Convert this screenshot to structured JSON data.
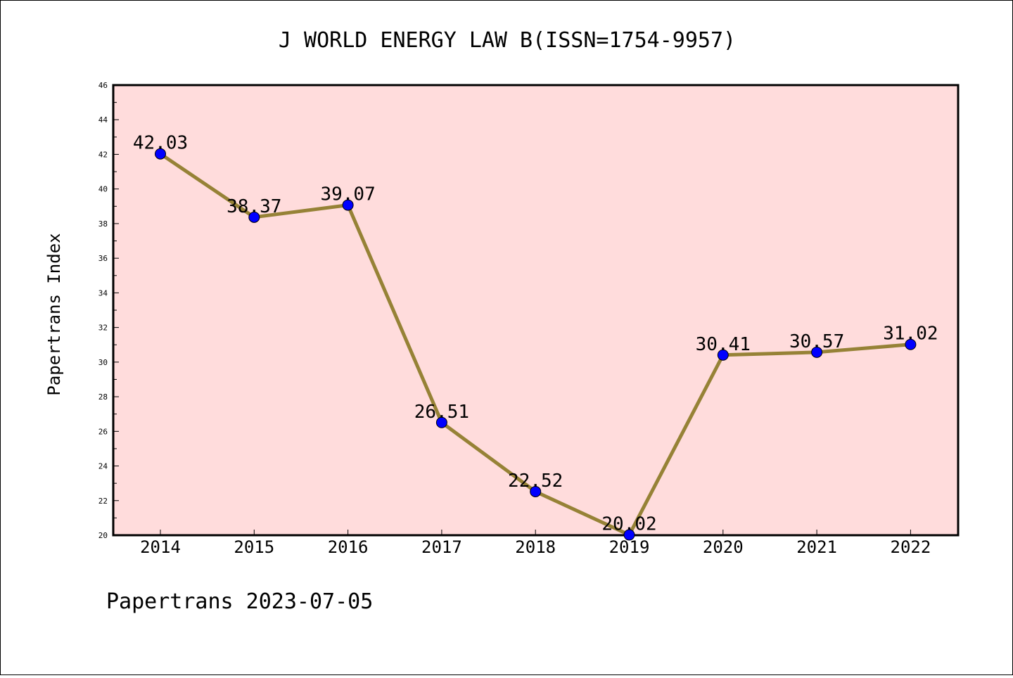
{
  "chart_data": {
    "type": "line",
    "title": "J WORLD ENERGY LAW B(ISSN=1754-9957)",
    "ylabel": "Papertrans Index",
    "xlabel": "",
    "categories": [
      "2014",
      "2015",
      "2016",
      "2017",
      "2018",
      "2019",
      "2020",
      "2021",
      "2022"
    ],
    "series": [
      {
        "values": [
          42.03,
          38.37,
          39.07,
          26.51,
          22.52,
          20.02,
          30.41,
          30.57,
          31.02
        ],
        "labels": [
          "42.03",
          "38.37",
          "39.07",
          "26.51",
          "22.52",
          "20.02",
          "30.41",
          "30.57",
          "31.02"
        ]
      }
    ],
    "ylim": [
      20,
      46
    ],
    "yticks": [
      "20",
      "22",
      "24",
      "26",
      "28",
      "30",
      "32",
      "34",
      "36",
      "38",
      "40",
      "42",
      "44",
      "46"
    ],
    "grid": false,
    "colors": {
      "plot_background": "#FFDCDC",
      "line": "#968236",
      "marker": "#0000FF"
    }
  },
  "footer": "Papertrans 2023-07-05"
}
